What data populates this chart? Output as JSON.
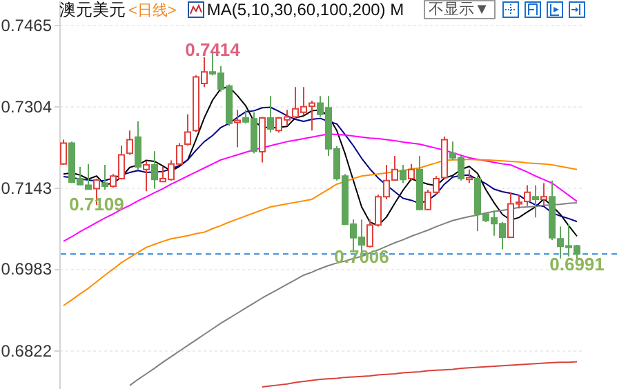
{
  "chart_data": {
    "type": "candlestick",
    "title": "澳元美元",
    "subtitle": "<日线>",
    "annotations": [
      "MA(5,10,30,60,100,200) M",
      "不显示▼",
      {
        "text": "0.7414",
        "y": 0.7414
      },
      {
        "text": "0.7109",
        "y": 0.7109
      },
      {
        "text": "0.7006",
        "y": 0.7006
      },
      {
        "text": "0.6991",
        "y": 0.6991
      }
    ],
    "categories": [
      null,
      null,
      null,
      null,
      null,
      null,
      null,
      null,
      null,
      null,
      null,
      null,
      null,
      null,
      null,
      null,
      null,
      null,
      null,
      null,
      null,
      null,
      null,
      null,
      null,
      null,
      null,
      null,
      null,
      null,
      null,
      null,
      null,
      null,
      null,
      null,
      null,
      null,
      null,
      null,
      null,
      null,
      null,
      null,
      null,
      null,
      null,
      null,
      null,
      null,
      null,
      null,
      null,
      null,
      null,
      null,
      null,
      null,
      null,
      null,
      null,
      null,
      null
    ],
    "ohlc": [
      [
        0.719,
        0.7238,
        0.7188,
        0.7231
      ],
      [
        0.7231,
        0.7234,
        0.7152,
        0.7154
      ],
      [
        0.7161,
        0.7184,
        0.7148,
        0.7149
      ],
      [
        0.7148,
        0.719,
        0.7139,
        0.714
      ],
      [
        0.7141,
        0.7161,
        0.7109,
        0.7158
      ],
      [
        0.7152,
        0.7188,
        0.7139,
        0.7146
      ],
      [
        0.7146,
        0.717,
        0.7143,
        0.7166
      ],
      [
        0.7161,
        0.7226,
        0.7159,
        0.7208
      ],
      [
        0.7211,
        0.7256,
        0.7208,
        0.7238
      ],
      [
        0.7243,
        0.7274,
        0.7179,
        0.7184
      ],
      [
        0.7179,
        0.7196,
        0.7136,
        0.7188
      ],
      [
        0.7188,
        0.7215,
        0.7141,
        0.7159
      ],
      [
        0.7155,
        0.7184,
        0.7154,
        0.7161
      ],
      [
        0.7159,
        0.7197,
        0.7157,
        0.719
      ],
      [
        0.719,
        0.7231,
        0.7188,
        0.7226
      ],
      [
        0.7229,
        0.7288,
        0.7226,
        0.7253
      ],
      [
        0.7256,
        0.7365,
        0.7253,
        0.7362
      ],
      [
        0.7349,
        0.7401,
        0.7342,
        0.7372
      ],
      [
        0.7372,
        0.7414,
        0.7365,
        0.7368
      ],
      [
        0.7369,
        0.7383,
        0.7333,
        0.7338
      ],
      [
        0.7344,
        0.7347,
        0.7265,
        0.727
      ],
      [
        0.7272,
        0.7297,
        0.7223,
        0.7276
      ],
      [
        0.7281,
        0.7297,
        0.727,
        0.7273
      ],
      [
        0.7279,
        0.7292,
        0.7211,
        0.7215
      ],
      [
        0.7214,
        0.7283,
        0.7193,
        0.7281
      ],
      [
        0.7281,
        0.7324,
        0.7252,
        0.7259
      ],
      [
        0.7256,
        0.7283,
        0.7252,
        0.7281
      ],
      [
        0.7277,
        0.7297,
        0.7265,
        0.7283
      ],
      [
        0.7283,
        0.7342,
        0.7279,
        0.7299
      ],
      [
        0.7292,
        0.7342,
        0.7286,
        0.7303
      ],
      [
        0.7304,
        0.7315,
        0.7256,
        0.731
      ],
      [
        0.731,
        0.7324,
        0.7283,
        0.7288
      ],
      [
        0.7301,
        0.7324,
        0.7206,
        0.722
      ],
      [
        0.722,
        0.7225,
        0.7157,
        0.7161
      ],
      [
        0.7166,
        0.717,
        0.7069,
        0.7071
      ],
      [
        0.7071,
        0.708,
        0.7016,
        0.7044
      ],
      [
        0.7045,
        0.708,
        0.7006,
        0.703
      ],
      [
        0.7027,
        0.708,
        0.7025,
        0.7069
      ],
      [
        0.7069,
        0.7129,
        0.7066,
        0.7125
      ],
      [
        0.7125,
        0.7188,
        0.712,
        0.7157
      ],
      [
        0.7158,
        0.7206,
        0.7157,
        0.7179
      ],
      [
        0.7177,
        0.7188,
        0.7152,
        0.7159
      ],
      [
        0.7161,
        0.719,
        0.7157,
        0.7179
      ],
      [
        0.7179,
        0.7206,
        0.7098,
        0.71
      ],
      [
        0.71,
        0.7139,
        0.7098,
        0.7134
      ],
      [
        0.7134,
        0.7166,
        0.7129,
        0.7161
      ],
      [
        0.7163,
        0.7244,
        0.7161,
        0.7238
      ],
      [
        0.7211,
        0.7234,
        0.7197,
        0.7202
      ],
      [
        0.7202,
        0.7206,
        0.7157,
        0.7161
      ],
      [
        0.7159,
        0.7179,
        0.7152,
        0.7163
      ],
      [
        0.7161,
        0.7166,
        0.7057,
        0.7091
      ],
      [
        0.7091,
        0.7093,
        0.7075,
        0.7078
      ],
      [
        0.7083,
        0.7098,
        0.7048,
        0.7072
      ],
      [
        0.7072,
        0.7075,
        0.7021,
        0.7045
      ],
      [
        0.7045,
        0.7134,
        0.7044,
        0.7111
      ],
      [
        0.7111,
        0.7129,
        0.7102,
        0.7114
      ],
      [
        0.7116,
        0.7148,
        0.7107,
        0.7134
      ],
      [
        0.7125,
        0.7148,
        0.7084,
        0.712
      ],
      [
        0.712,
        0.7152,
        0.7107,
        0.7125
      ],
      [
        0.7125,
        0.7157,
        0.7039,
        0.7044
      ],
      [
        0.7042,
        0.7066,
        0.7003,
        0.7027
      ],
      [
        0.7028,
        0.7071,
        0.7007,
        0.7025
      ],
      [
        0.7028,
        0.703,
        0.6991,
        0.7012
      ]
    ],
    "colors": [
      "#e0403c",
      "#5fa55a",
      "#5fa55a",
      "#5fa55a",
      "#e0403c",
      "#5fa55a",
      "#e0403c",
      "#e0403c",
      "#e0403c",
      "#5fa55a",
      "#e0403c",
      "#5fa55a",
      "#e0403c",
      "#e0403c",
      "#e0403c",
      "#e0403c",
      "#e0403c",
      "#e0403c",
      "#5fa55a",
      "#5fa55a",
      "#5fa55a",
      "#e0403c",
      "#5fa55a",
      "#5fa55a",
      "#e0403c",
      "#5fa55a",
      "#e0403c",
      "#e0403c",
      "#e0403c",
      "#e0403c",
      "#e0403c",
      "#5fa55a",
      "#5fa55a",
      "#5fa55a",
      "#5fa55a",
      "#5fa55a",
      "#5fa55a",
      "#e0403c",
      "#e0403c",
      "#e0403c",
      "#e0403c",
      "#5fa55a",
      "#e0403c",
      "#5fa55a",
      "#e0403c",
      "#e0403c",
      "#e0403c",
      "#5fa55a",
      "#5fa55a",
      "#e0403c",
      "#5fa55a",
      "#5fa55a",
      "#5fa55a",
      "#5fa55a",
      "#e0403c",
      "#e0403c",
      "#e0403c",
      "#5fa55a",
      "#e0403c",
      "#5fa55a",
      "#5fa55a",
      "#5fa55a",
      "#5fa55a"
    ],
    "series": [
      {
        "type": "line",
        "color": "#000000",
        "values": [
          0.717,
          0.7172,
          0.7168,
          0.716,
          0.7166,
          0.7149,
          0.7152,
          0.7164,
          0.7183,
          0.7188,
          0.7197,
          0.7195,
          0.7186,
          0.7176,
          0.7185,
          0.7198,
          0.7238,
          0.7281,
          0.7316,
          0.7339,
          0.7342,
          0.7325,
          0.7305,
          0.7274,
          0.7263,
          0.7261,
          0.7262,
          0.7264,
          0.7281,
          0.7285,
          0.7295,
          0.7297,
          0.7284,
          0.7256,
          0.721,
          0.7157,
          0.7105,
          0.7075,
          0.7068,
          0.7085,
          0.7112,
          0.7138,
          0.716,
          0.7155,
          0.715,
          0.7147,
          0.7162,
          0.7167,
          0.7179,
          0.7185,
          0.7171,
          0.7139,
          0.7113,
          0.709,
          0.7079,
          0.7084,
          0.7095,
          0.7105,
          0.7121,
          0.7107,
          0.709,
          0.7068,
          0.7047
        ]
      },
      {
        "type": "line",
        "color": "#00008b",
        "values": [
          0.7165,
          0.7163,
          0.716,
          0.7158,
          0.7156,
          0.7157,
          0.7162,
          0.7168,
          0.7173,
          0.7177,
          0.7173,
          0.7174,
          0.7175,
          0.718,
          0.7187,
          0.7198,
          0.7217,
          0.7234,
          0.7246,
          0.7262,
          0.727,
          0.7282,
          0.7293,
          0.7295,
          0.7301,
          0.7302,
          0.7294,
          0.7285,
          0.7278,
          0.7274,
          0.7278,
          0.728,
          0.7274,
          0.7269,
          0.7248,
          0.7226,
          0.7201,
          0.718,
          0.7162,
          0.7148,
          0.7135,
          0.7122,
          0.7118,
          0.7112,
          0.7118,
          0.713,
          0.715,
          0.7164,
          0.7167,
          0.7168,
          0.7159,
          0.7151,
          0.714,
          0.7135,
          0.7132,
          0.7128,
          0.7117,
          0.7109,
          0.7106,
          0.7093,
          0.7087,
          0.7082,
          0.7076
        ]
      },
      {
        "type": "line",
        "color": "#ff00ff",
        "values": [
          0.7037,
          0.7046,
          0.7056,
          0.7065,
          0.7074,
          0.7083,
          0.7091,
          0.71,
          0.7108,
          0.7117,
          0.7125,
          0.7133,
          0.7141,
          0.715,
          0.7158,
          0.7166,
          0.7174,
          0.7182,
          0.719,
          0.7198,
          0.7203,
          0.7208,
          0.7213,
          0.7218,
          0.7222,
          0.7226,
          0.723,
          0.7234,
          0.7237,
          0.724,
          0.7243,
          0.7246,
          0.7249,
          0.7248,
          0.7247,
          0.7245,
          0.7243,
          0.7241,
          0.724,
          0.7238,
          0.7236,
          0.7233,
          0.7231,
          0.7229,
          0.7225,
          0.7221,
          0.7217,
          0.7212,
          0.7207,
          0.7202,
          0.7199,
          0.7196,
          0.7193,
          0.719,
          0.7188,
          0.7181,
          0.7174,
          0.7166,
          0.7159,
          0.7152,
          0.714,
          0.7128,
          0.7116
        ]
      },
      {
        "type": "line",
        "color": "#ff8c00",
        "values": [
          0.691,
          0.6921,
          0.6933,
          0.6944,
          0.6957,
          0.697,
          0.6982,
          0.6995,
          0.7005,
          0.7015,
          0.7025,
          0.7031,
          0.7037,
          0.7042,
          0.7045,
          0.7048,
          0.7052,
          0.7055,
          0.7062,
          0.7068,
          0.7075,
          0.7081,
          0.7087,
          0.7093,
          0.7099,
          0.7105,
          0.7108,
          0.7111,
          0.7114,
          0.7117,
          0.712,
          0.713,
          0.714,
          0.715,
          0.7155,
          0.7161,
          0.7166,
          0.7168,
          0.717,
          0.7172,
          0.7175,
          0.7177,
          0.718,
          0.7182,
          0.7187,
          0.7192,
          0.7197,
          0.7198,
          0.7198,
          0.7199,
          0.7198,
          0.7198,
          0.7197,
          0.7196,
          0.7195,
          0.7194,
          0.7192,
          0.7191,
          0.719,
          0.7188,
          0.7185,
          0.7182,
          0.7179
        ]
      },
      {
        "type": "line",
        "color": "#808080",
        "values": [
          null,
          null,
          null,
          null,
          null,
          null,
          null,
          null,
          0.6752,
          0.6764,
          0.6775,
          0.6786,
          0.6798,
          0.6809,
          0.682,
          0.6831,
          0.6842,
          0.6853,
          0.6864,
          0.6875,
          0.6885,
          0.6895,
          0.6905,
          0.6915,
          0.6925,
          0.6934,
          0.6943,
          0.6952,
          0.6961,
          0.697,
          0.6976,
          0.6983,
          0.6989,
          0.6994,
          0.6998,
          0.7003,
          0.7007,
          0.7014,
          0.702,
          0.7027,
          0.7034,
          0.704,
          0.7047,
          0.7053,
          0.7059,
          0.7066,
          0.7072,
          0.7078,
          0.7082,
          0.7086,
          0.7089,
          0.7093,
          0.7096,
          0.7098,
          0.7101,
          0.7104,
          0.7105,
          0.7106,
          0.7108,
          0.7109,
          0.711,
          0.7112,
          0.7113
        ]
      },
      {
        "type": "line",
        "color": "#d9413b",
        "values": [
          null,
          null,
          null,
          null,
          null,
          null,
          null,
          null,
          null,
          null,
          null,
          null,
          null,
          null,
          null,
          null,
          null,
          null,
          null,
          null,
          null,
          null,
          null,
          null,
          0.6749,
          0.6751,
          0.6753,
          0.6755,
          0.6758,
          0.676,
          0.6762,
          0.6764,
          0.6765,
          0.6766,
          0.6768,
          0.6769,
          0.677,
          0.6771,
          0.6773,
          0.6774,
          0.6775,
          0.6777,
          0.6778,
          0.6779,
          0.6781,
          0.6782,
          0.6783,
          0.6784,
          0.6786,
          0.6787,
          0.6788,
          0.6789,
          0.679,
          0.6791,
          0.6792,
          0.6793,
          0.6794,
          0.6795,
          0.6796,
          0.6797,
          0.6798,
          0.6798,
          0.6799
        ]
      }
    ],
    "ylim": [
      0.6745,
      0.7514
    ],
    "yticks": [
      0.6822,
      0.6983,
      0.7143,
      0.7304,
      0.7465
    ],
    "ref_lines": [
      {
        "axis": "y",
        "value": 0.7012,
        "color": "#2a85e0",
        "line_style": "dashed"
      }
    ],
    "grid": "y",
    "tick_labels": "y"
  }
}
